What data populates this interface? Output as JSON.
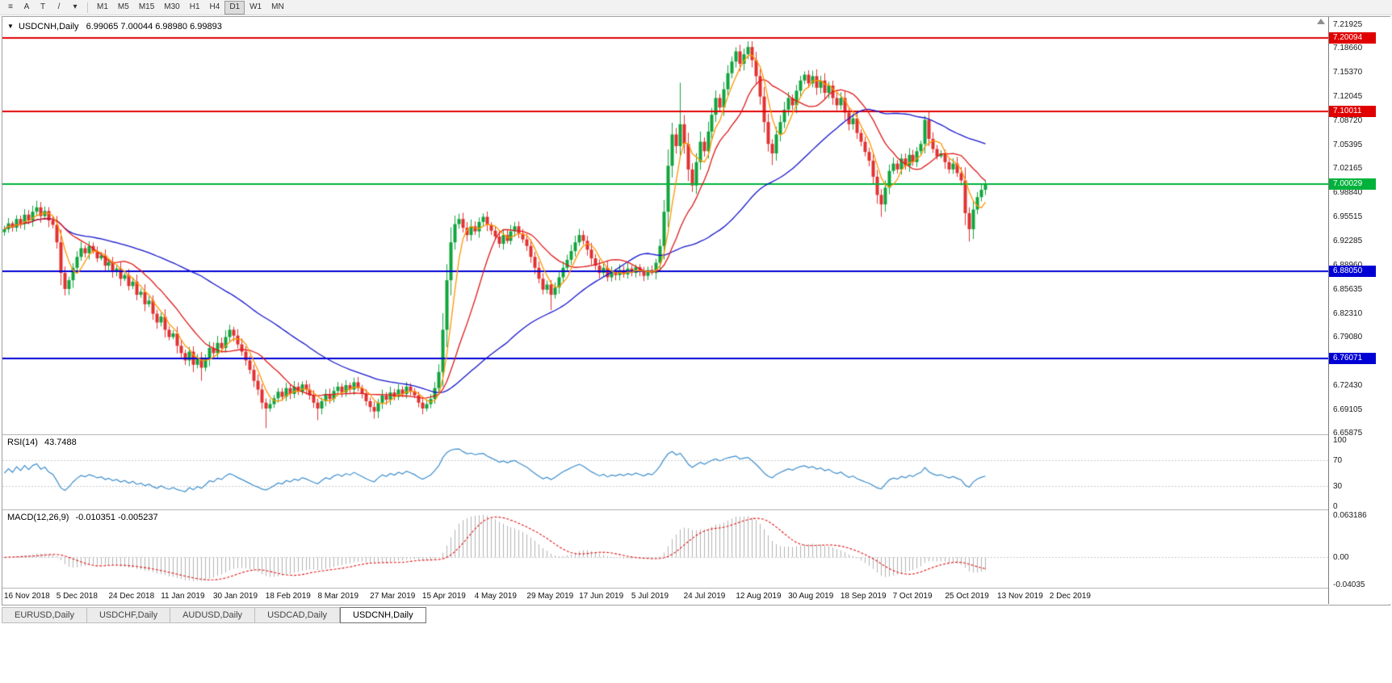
{
  "toolbar": {
    "tools": [
      {
        "name": "chart-list-icon",
        "glyph": "≡"
      },
      {
        "name": "annotation-a-button",
        "glyph": "A"
      },
      {
        "name": "annotation-t-button",
        "glyph": "T"
      },
      {
        "name": "trendline-tool-button",
        "glyph": "/"
      },
      {
        "name": "tool-dropdown-caret-icon",
        "glyph": "▾"
      }
    ],
    "timeframes": [
      {
        "label": "M1",
        "active": false
      },
      {
        "label": "M5",
        "active": false
      },
      {
        "label": "M15",
        "active": false
      },
      {
        "label": "M30",
        "active": false
      },
      {
        "label": "H1",
        "active": false
      },
      {
        "label": "H4",
        "active": false
      },
      {
        "label": "D1",
        "active": true
      },
      {
        "label": "W1",
        "active": false
      },
      {
        "label": "MN",
        "active": false
      }
    ]
  },
  "chart": {
    "collapse_glyph": "▼",
    "symbol": "USDCNH,Daily",
    "ohlc_text": "6.99065 7.00044 6.98980 6.99893"
  },
  "panes": {
    "rsi_label": "RSI(14)",
    "rsi_value": "43.7488",
    "macd_label": "MACD(12,26,9)",
    "macd_values": "-0.010351 -0.005237"
  },
  "tabs": [
    {
      "label": "EURUSD,Daily",
      "active": false
    },
    {
      "label": "USDCHF,Daily",
      "active": false
    },
    {
      "label": "AUDUSD,Daily",
      "active": false
    },
    {
      "label": "USDCAD,Daily",
      "active": false
    },
    {
      "label": "USDCNH,Daily",
      "active": true
    }
  ],
  "chart_data": {
    "type": "candlestick",
    "symbol": "USDCNH",
    "timeframe": "Daily",
    "current_bar": {
      "open": 6.99065,
      "high": 7.00044,
      "low": 6.9898,
      "close": 6.99893
    },
    "y_axis_ticks": [
      "7.21925",
      "7.18660",
      "7.15370",
      "7.12045",
      "7.08720",
      "7.05395",
      "7.02165",
      "6.98840",
      "6.95515",
      "6.92285",
      "6.88960",
      "6.85635",
      "6.82310",
      "6.79080",
      "6.75755",
      "6.72430",
      "6.69105",
      "6.65875"
    ],
    "x_axis_labels": [
      "16 Nov 2018",
      "5 Dec 2018",
      "24 Dec 2018",
      "11 Jan 2019",
      "30 Jan 2019",
      "18 Feb 2019",
      "8 Mar 2019",
      "27 Mar 2019",
      "15 Apr 2019",
      "4 May 2019",
      "29 May 2019",
      "17 Jun 2019",
      "5 Jul 2019",
      "24 Jul 2019",
      "12 Aug 2019",
      "30 Aug 2019",
      "18 Sep 2019",
      "7 Oct 2019",
      "25 Oct 2019",
      "13 Nov 2019",
      "2 Dec 2019"
    ],
    "horizontal_lines": [
      {
        "price": 7.20094,
        "label": "7.20094",
        "color": "#e00000",
        "role": "resistance-line"
      },
      {
        "price": 7.10011,
        "label": "7.10011",
        "color": "#e00000",
        "role": "resistance-line"
      },
      {
        "price": 7.00029,
        "label": "7.00029",
        "color": "#00b23b",
        "role": "current-price-line"
      },
      {
        "price": 6.8805,
        "label": "6.88050",
        "color": "#0000d4",
        "role": "support-line"
      },
      {
        "price": 6.76071,
        "label": "6.76071",
        "color": "#0000d4",
        "role": "support-line"
      }
    ],
    "up_color": "#10a43c",
    "down_color": "#e23030",
    "moving_averages": [
      {
        "period": 50,
        "color": "#1515cc"
      },
      {
        "period": 14,
        "color": "#e01818"
      },
      {
        "period": 5,
        "color": "#ff9500"
      }
    ],
    "rsi": {
      "period": 14,
      "color": "#3c8dcc",
      "levels": [
        70,
        30
      ],
      "axis_labels": [
        "100",
        "70",
        "30",
        "0"
      ],
      "range": [
        0,
        100
      ],
      "current": 43.7488
    },
    "macd": {
      "fast": 12,
      "slow": 26,
      "signal_period": 9,
      "histogram_color": "#b2b2b2",
      "signal_color": "#e01818",
      "axis_labels": [
        "0.063186",
        "0.00",
        "-0.04035"
      ],
      "range": [
        -0.0455,
        0.0705
      ],
      "current_macd": -0.010351,
      "current_signal": -0.005237
    },
    "closes": [
      6.938,
      6.946,
      6.94,
      6.952,
      6.945,
      6.958,
      6.95,
      6.962,
      6.968,
      6.956,
      6.963,
      6.95,
      6.944,
      6.92,
      6.878,
      6.856,
      6.868,
      6.885,
      6.9,
      6.912,
      6.905,
      6.915,
      6.908,
      6.898,
      6.902,
      6.888,
      6.893,
      6.88,
      6.884,
      6.87,
      6.875,
      6.86,
      6.866,
      6.848,
      6.852,
      6.835,
      6.84,
      6.822,
      6.81,
      6.818,
      6.8,
      6.79,
      6.795,
      6.778,
      6.768,
      6.758,
      6.77,
      6.752,
      6.762,
      6.748,
      6.76,
      6.775,
      6.768,
      6.782,
      6.775,
      6.79,
      6.8,
      6.792,
      6.78,
      6.77,
      6.758,
      6.745,
      6.73,
      6.718,
      6.7,
      6.692,
      6.698,
      6.706,
      6.715,
      6.708,
      6.72,
      6.712,
      6.722,
      6.715,
      6.725,
      6.718,
      6.71,
      6.7,
      6.692,
      6.702,
      6.712,
      6.705,
      6.716,
      6.722,
      6.714,
      6.724,
      6.718,
      6.728,
      6.72,
      6.712,
      6.702,
      6.694,
      6.688,
      6.7,
      6.71,
      6.704,
      6.714,
      6.708,
      6.718,
      6.712,
      6.722,
      6.716,
      6.71,
      6.7,
      6.692,
      6.698,
      6.705,
      6.72,
      6.742,
      6.8,
      6.868,
      6.92,
      6.945,
      6.952,
      6.94,
      6.93,
      6.942,
      6.935,
      6.948,
      6.955,
      6.944,
      6.936,
      6.928,
      6.918,
      6.93,
      6.922,
      6.935,
      6.942,
      6.932,
      6.924,
      6.915,
      6.9,
      6.885,
      6.87,
      6.855,
      6.862,
      6.848,
      6.858,
      6.872,
      6.885,
      6.896,
      6.908,
      6.92,
      6.93,
      6.922,
      6.91,
      6.898,
      6.888,
      6.878,
      6.885,
      6.872,
      6.88,
      6.875,
      6.882,
      6.876,
      6.884,
      6.878,
      6.886,
      6.88,
      6.874,
      6.882,
      6.878,
      6.892,
      6.915,
      6.962,
      7.025,
      7.068,
      7.052,
      7.082,
      7.055,
      7.02,
      6.998,
      7.03,
      7.058,
      7.045,
      7.072,
      7.095,
      7.118,
      7.105,
      7.13,
      7.152,
      7.168,
      7.182,
      7.165,
      7.178,
      7.188,
      7.17,
      7.148,
      7.12,
      7.085,
      7.055,
      7.042,
      7.068,
      7.085,
      7.102,
      7.118,
      7.108,
      7.128,
      7.142,
      7.15,
      7.138,
      7.148,
      7.132,
      7.142,
      7.125,
      7.135,
      7.118,
      7.108,
      7.118,
      7.098,
      7.082,
      7.09,
      7.07,
      7.058,
      7.044,
      7.032,
      7.01,
      6.985,
      6.972,
      6.995,
      7.018,
      7.028,
      7.02,
      7.035,
      7.025,
      7.04,
      7.03,
      7.045,
      7.055,
      7.088,
      7.062,
      7.048,
      7.038,
      7.042,
      7.03,
      7.02,
      7.028,
      7.015,
      7.005,
      6.96,
      6.938,
      6.965,
      6.982,
      6.992,
      6.99893
    ],
    "wick_overrides": {
      "8": {
        "high": 6.977
      },
      "49": {
        "low": 6.73
      },
      "65": {
        "low": 6.665
      },
      "78": {
        "low": 6.676
      },
      "92": {
        "low": 6.678
      },
      "136": {
        "low": 6.827
      },
      "168": {
        "high": 7.139
      },
      "185": {
        "high": 7.1958
      },
      "191": {
        "low": 7.026
      },
      "218": {
        "low": 6.955
      },
      "229": {
        "high": 7.0935
      },
      "240": {
        "low": 6.921
      }
    }
  }
}
